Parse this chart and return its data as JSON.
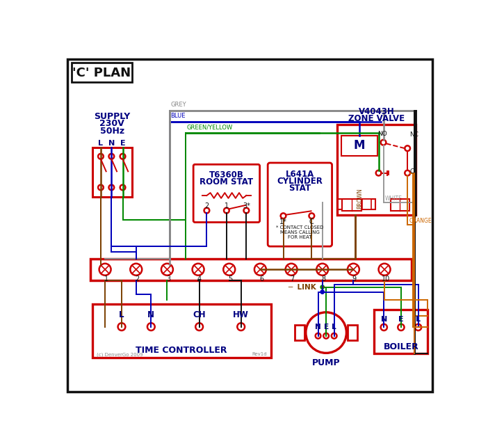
{
  "bg": "#ffffff",
  "black": "#111111",
  "red": "#cc0000",
  "blue": "#0000bb",
  "green": "#008800",
  "grey": "#888888",
  "brown": "#7B3F00",
  "orange": "#cc6600",
  "navy": "#000080",
  "white_wire": "#999999",
  "title": "'C' PLAN",
  "supply1": "SUPPLY",
  "supply2": "230V",
  "supply3": "50Hz",
  "room_stat1": "T6360B",
  "room_stat2": "ROOM STAT",
  "cyl_stat1": "L641A",
  "cyl_stat2": "CYLINDER",
  "cyl_stat3": "STAT",
  "zone1": "V4043H",
  "zone2": "ZONE VALVE",
  "tc_label": "TIME CONTROLLER",
  "pump_label": "PUMP",
  "boiler_label": "BOILER",
  "link_label": "LINK",
  "copyright": "(c) DenverGo 2009",
  "rev": "Rev1d",
  "lne": [
    "L",
    "N",
    "E"
  ],
  "nel": [
    "N",
    "E",
    "L"
  ],
  "tc_terms": [
    "L",
    "N",
    "CH",
    "HW"
  ],
  "term_nums": [
    "1",
    "2",
    "3",
    "4",
    "5",
    "6",
    "7",
    "8",
    "9",
    "10"
  ],
  "grey_label": "GREY",
  "blue_label": "BLUE",
  "gy_label": "GREEN/YELLOW",
  "brown_label": "BROWN",
  "white_label": "WHITE",
  "orange_label": "ORANGE"
}
